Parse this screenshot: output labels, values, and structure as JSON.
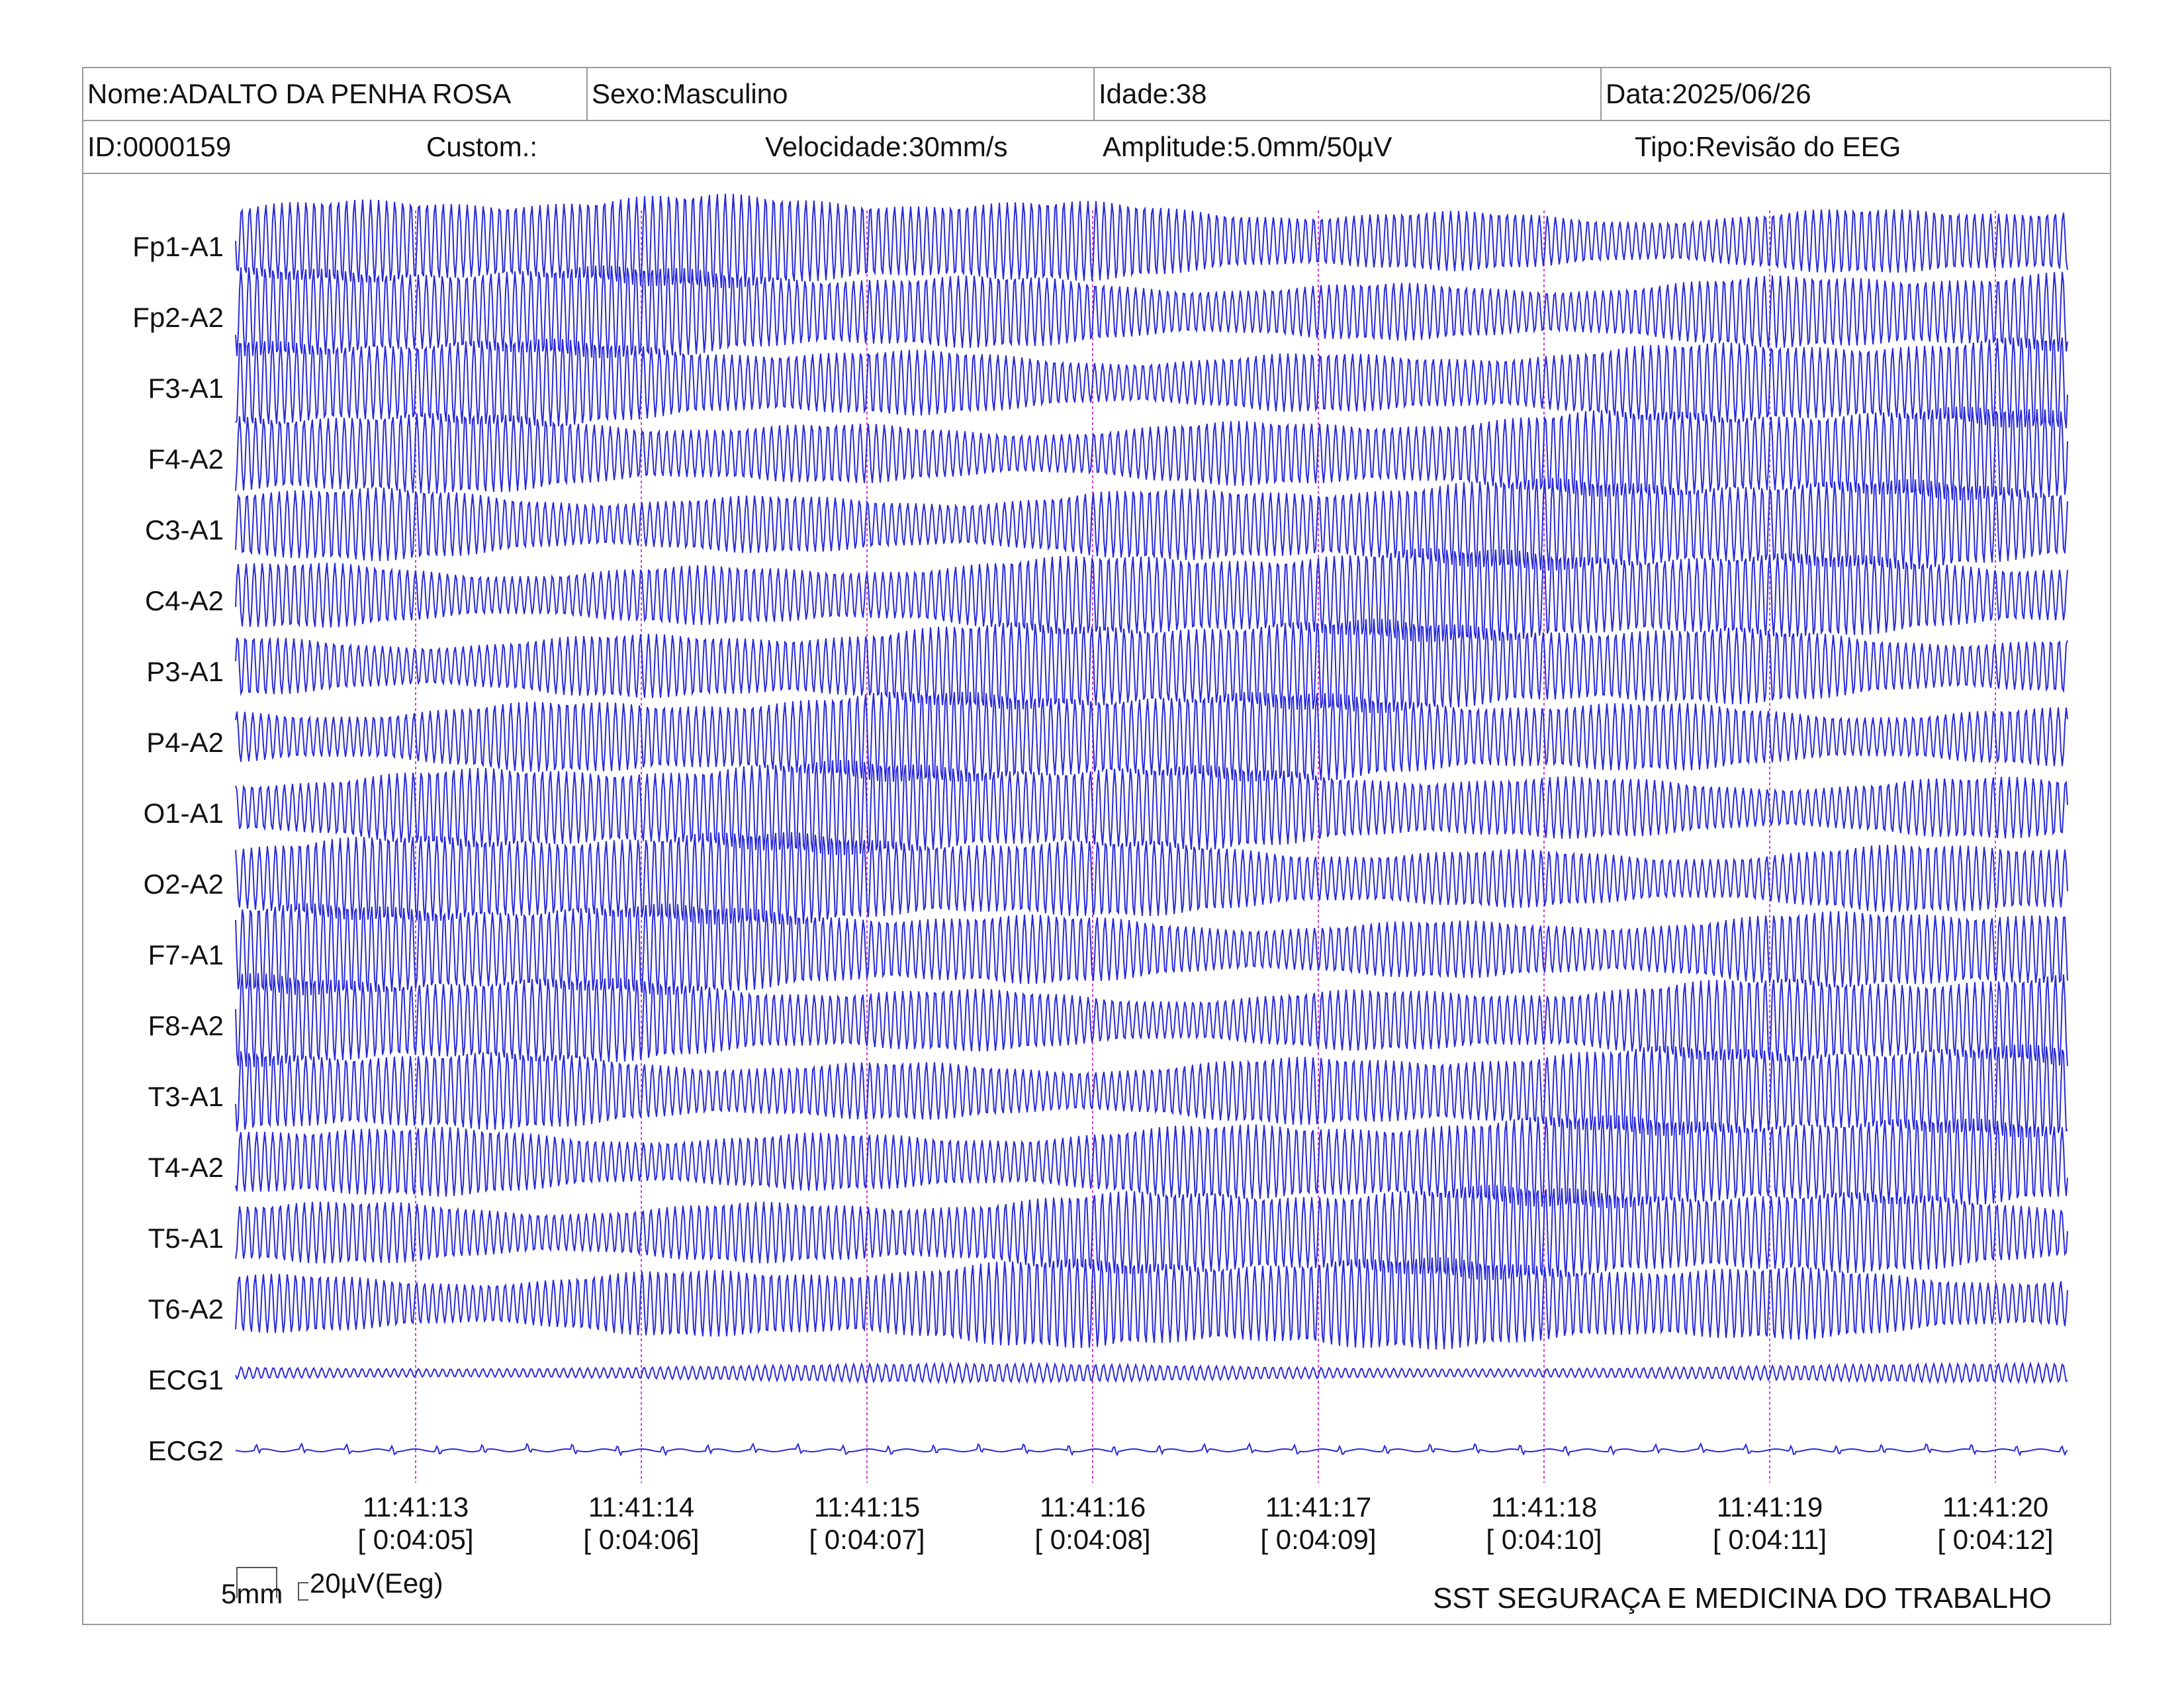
{
  "header": {
    "nome": "Nome:ADALTO DA PENHA ROSA",
    "sexo": "Sexo:Masculino",
    "idade": "Idade:38",
    "data": "Data:2025/06/26",
    "id": "ID:0000159",
    "custom": "Custom.:",
    "velocidade": "Velocidade:30mm/s",
    "amplitude": "Amplitude:5.0mm/50µV",
    "tipo": "Tipo:Revisão do EEG"
  },
  "scale": {
    "length_label": "5mm",
    "amplitude_label": "20µV(Eeg)"
  },
  "footer": {
    "organization": "SST SEGURAÇA E MEDICINA DO TRABALHO"
  },
  "colors": {
    "trace": "#2a2ad6",
    "marker": "#d040d0",
    "border": "#9a9a9a"
  },
  "chart_data": {
    "type": "line",
    "title": "",
    "xlabel": "",
    "ylabel": "",
    "grid": false,
    "channels": [
      "Fp1-A1",
      "Fp2-A2",
      "F3-A1",
      "F4-A2",
      "C3-A1",
      "C4-A2",
      "P3-A1",
      "P4-A2",
      "O1-A1",
      "O2-A2",
      "F7-A1",
      "F8-A2",
      "T3-A1",
      "T4-A2",
      "T5-A1",
      "T6-A2",
      "ECG1",
      "ECG2"
    ],
    "time_markers": [
      {
        "clock": "11:41:13",
        "elapsed": "[ 0:04:05]"
      },
      {
        "clock": "11:41:14",
        "elapsed": "[ 0:04:06]"
      },
      {
        "clock": "11:41:15",
        "elapsed": "[ 0:04:07]"
      },
      {
        "clock": "11:41:16",
        "elapsed": "[ 0:04:08]"
      },
      {
        "clock": "11:41:17",
        "elapsed": "[ 0:04:09]"
      },
      {
        "clock": "11:41:18",
        "elapsed": "[ 0:04:10]"
      },
      {
        "clock": "11:41:19",
        "elapsed": "[ 0:04:11]"
      },
      {
        "clock": "11:41:20",
        "elapsed": "[ 0:04:12]"
      }
    ],
    "waveform": {
      "eeg_cycles_per_second": 28,
      "ecg1_cycles_per_second": 28,
      "ecg2_beats_per_second": 5
    }
  }
}
